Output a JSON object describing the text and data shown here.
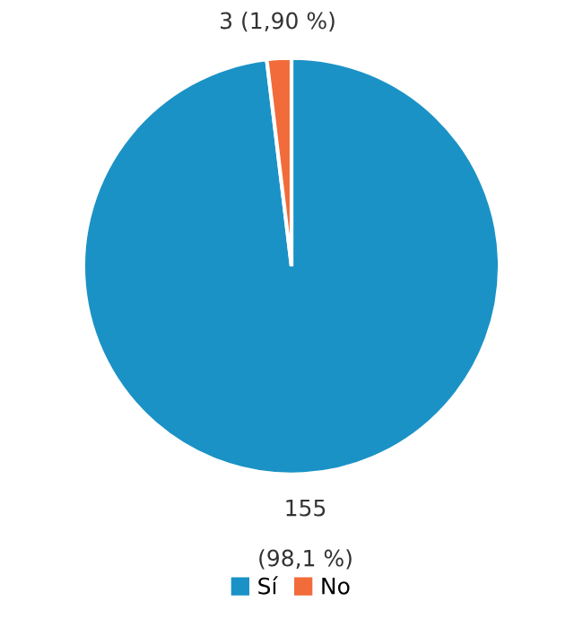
{
  "chart_data": {
    "type": "pie",
    "categories": [
      "Sí",
      "No"
    ],
    "values": [
      155,
      3
    ],
    "colors": [
      "#1b92c6",
      "#f26b3a"
    ],
    "value_labels": [
      "155\n\n(98,1 %)",
      "3 (1,90 %)"
    ],
    "legend": "bottom"
  }
}
